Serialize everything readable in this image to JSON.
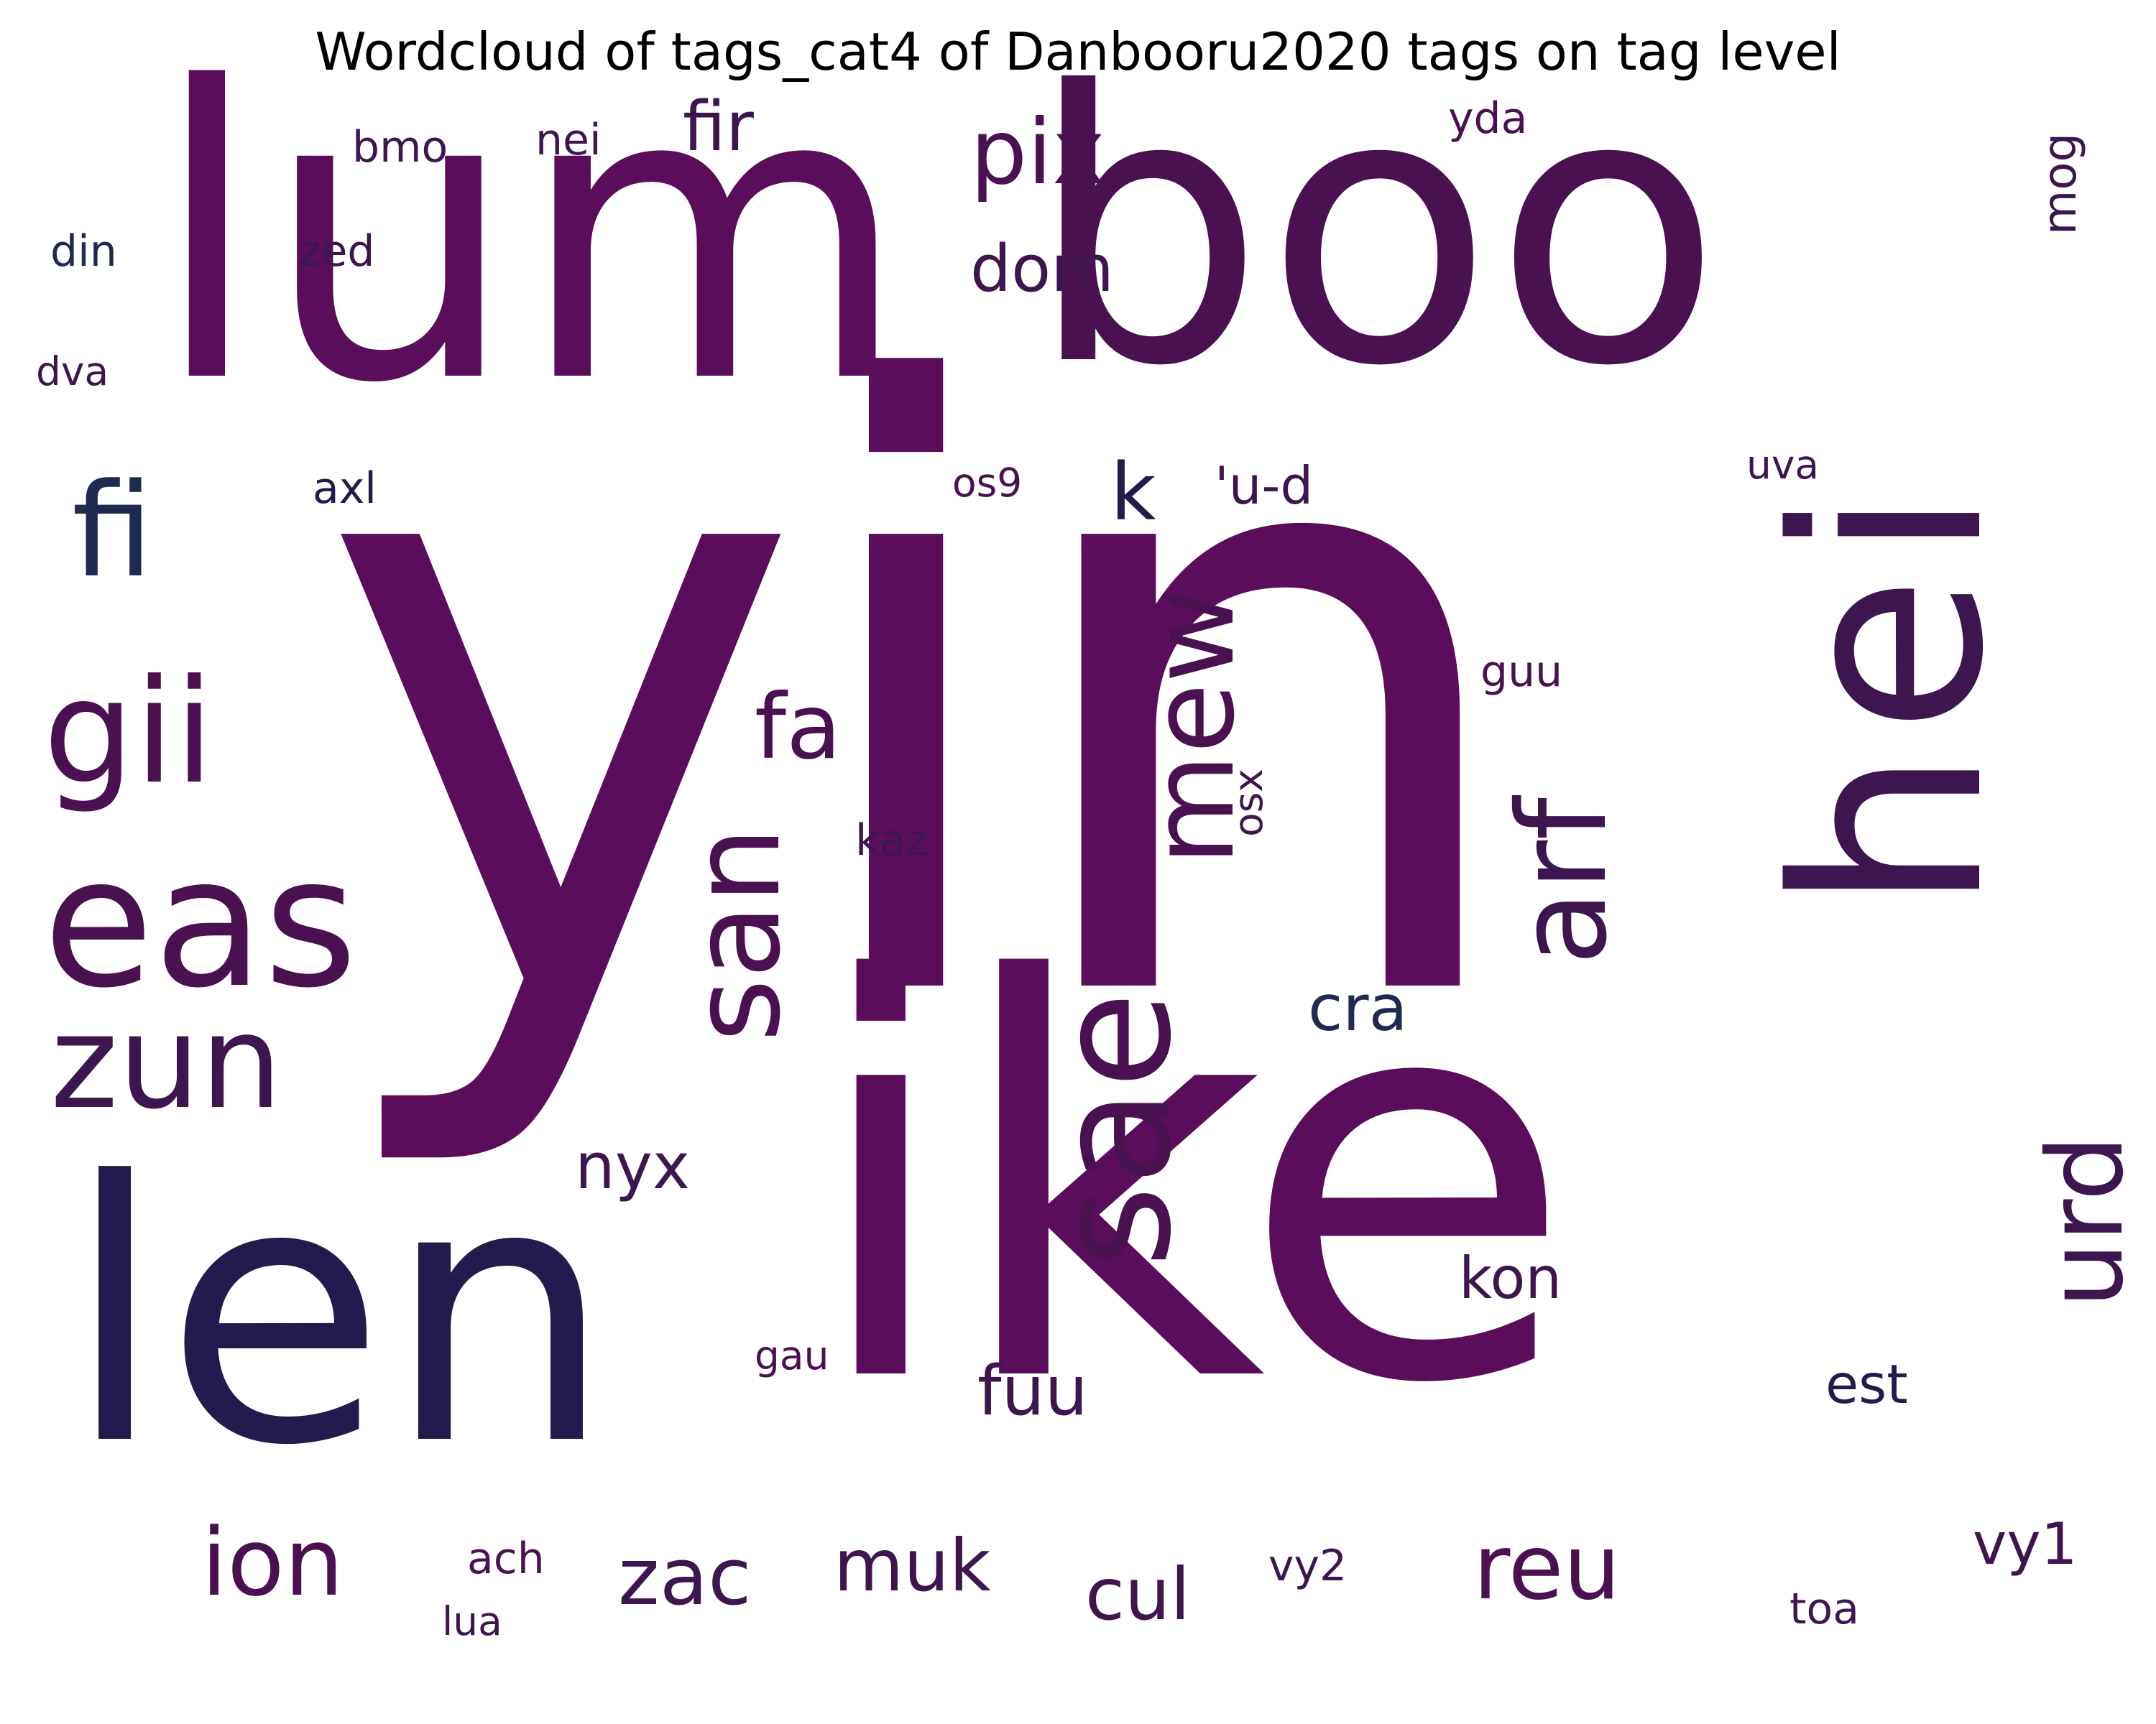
{
  "chart_data": {
    "type": "wordcloud",
    "title": "Wordcloud of tags_cat4 of Danbooru2020 tags on tag level",
    "background": "#ffffff",
    "palette": [
      "#5a0d5a",
      "#4a1150",
      "#3d1650",
      "#231a4e",
      "#1f2a50"
    ],
    "words": [
      {
        "text": "yin",
        "weight": 100,
        "color": "#5a0d5a"
      },
      {
        "text": "ike",
        "weight": 90,
        "color": "#5a0d5a"
      },
      {
        "text": "lum",
        "weight": 80,
        "color": "#5a0d5a"
      },
      {
        "text": "boo",
        "weight": 73,
        "color": "#4a1150"
      },
      {
        "text": "len",
        "weight": 65,
        "color": "#231a4e"
      },
      {
        "text": "hei",
        "weight": 47,
        "color": "#3d1650"
      },
      {
        "text": "eas",
        "weight": 35,
        "color": "#4a1150"
      },
      {
        "text": "sae",
        "weight": 31,
        "color": "#4a1150"
      },
      {
        "text": "gii",
        "weight": 28,
        "color": "#4a1150"
      },
      {
        "text": "zun",
        "weight": 25,
        "color": "#3d1650"
      },
      {
        "text": "fi",
        "weight": 25,
        "color": "#1f2a50"
      },
      {
        "text": "san",
        "weight": 24,
        "color": "#4a1150"
      },
      {
        "text": "arf",
        "weight": 24,
        "color": "#3d1650"
      },
      {
        "text": "mew",
        "weight": 22,
        "color": "#4a1150"
      },
      {
        "text": "urd",
        "weight": 20,
        "color": "#3d1650"
      },
      {
        "text": "ion",
        "weight": 18,
        "color": "#4a1150"
      },
      {
        "text": "reu",
        "weight": 17,
        "color": "#4a1150"
      },
      {
        "text": "fa",
        "weight": 17,
        "color": "#4a1150"
      },
      {
        "text": "pix",
        "weight": 16,
        "color": "#4a1150"
      },
      {
        "text": "k",
        "weight": 15,
        "color": "#231a4e"
      },
      {
        "text": "zac",
        "weight": 14,
        "color": "#3d1650"
      },
      {
        "text": "muk",
        "weight": 13,
        "color": "#3d1650"
      },
      {
        "text": "cul",
        "weight": 13,
        "color": "#3d1650"
      },
      {
        "text": "fir",
        "weight": 12,
        "color": "#3d1650"
      },
      {
        "text": "fuu",
        "weight": 12,
        "color": "#3d1650"
      },
      {
        "text": "nyx",
        "weight": 11,
        "color": "#3d1650"
      },
      {
        "text": "cra",
        "weight": 11,
        "color": "#1f2a50"
      },
      {
        "text": "dom",
        "weight": 11,
        "color": "#3d1650"
      },
      {
        "text": "kon",
        "weight": 10,
        "color": "#3d1650"
      },
      {
        "text": "vy1",
        "weight": 10,
        "color": "#3d1650"
      },
      {
        "text": "est",
        "weight": 9,
        "color": "#231a4e"
      },
      {
        "text": "'u-d",
        "weight": 9,
        "color": "#3d1650"
      },
      {
        "text": "mog",
        "weight": 8,
        "color": "#3d1650"
      },
      {
        "text": "yda",
        "weight": 7,
        "color": "#4a1150"
      },
      {
        "text": "nei",
        "weight": 7,
        "color": "#3d1650"
      },
      {
        "text": "bmo",
        "weight": 7,
        "color": "#3d1650"
      },
      {
        "text": "din",
        "weight": 7,
        "color": "#1f2a50"
      },
      {
        "text": "zed",
        "weight": 7,
        "color": "#3d1650"
      },
      {
        "text": "axl",
        "weight": 7,
        "color": "#231a4e"
      },
      {
        "text": "guu",
        "weight": 7,
        "color": "#4a1150"
      },
      {
        "text": "kaz",
        "weight": 7,
        "color": "#3d1650"
      },
      {
        "text": "vy2",
        "weight": 7,
        "color": "#3d1650"
      },
      {
        "text": "toa",
        "weight": 7,
        "color": "#3d1650"
      },
      {
        "text": "ach",
        "weight": 7,
        "color": "#4a1150"
      },
      {
        "text": "os9",
        "weight": 6,
        "color": "#4a1150"
      },
      {
        "text": "uva",
        "weight": 6,
        "color": "#3d1650"
      },
      {
        "text": "dva",
        "weight": 6,
        "color": "#3d1650"
      },
      {
        "text": "osx",
        "weight": 6,
        "color": "#3d1650"
      },
      {
        "text": "gau",
        "weight": 6,
        "color": "#4a1150"
      },
      {
        "text": "lua",
        "weight": 6,
        "color": "#3d1650"
      }
    ]
  }
}
